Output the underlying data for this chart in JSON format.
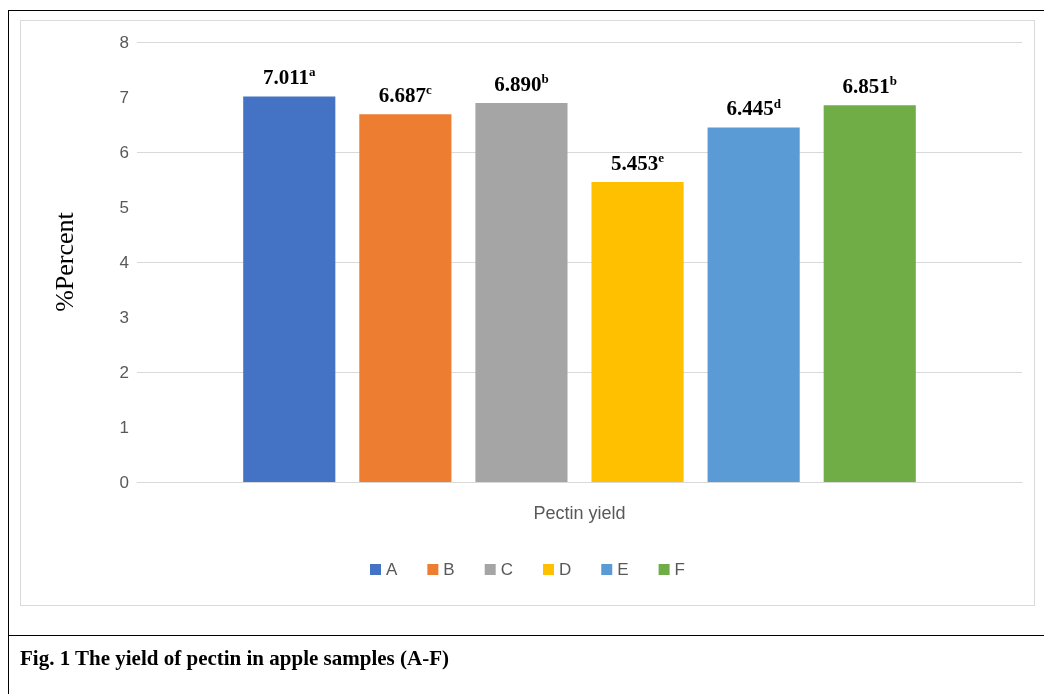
{
  "chart_data": {
    "type": "bar",
    "ylabel": "%Percent",
    "categories": [
      "Pectin yield"
    ],
    "series": [
      {
        "name": "A",
        "color": "#4472c4",
        "values": [
          7.011
        ],
        "value_labels": [
          "7.011$^{a}$"
        ]
      },
      {
        "name": "B",
        "color": "#ed7d31",
        "values": [
          6.687
        ],
        "value_labels": [
          "6.687$^{c}$"
        ]
      },
      {
        "name": "C",
        "color": "#a5a5a5",
        "values": [
          6.89
        ],
        "value_labels": [
          "6.890$^{b}$"
        ]
      },
      {
        "name": "D",
        "color": "#ffc000",
        "values": [
          5.453
        ],
        "value_labels": [
          "5.453$^{e}$"
        ]
      },
      {
        "name": "E",
        "color": "#5b9bd5",
        "values": [
          6.445
        ],
        "value_labels": [
          "6.445$^{d}$"
        ]
      },
      {
        "name": "F",
        "color": "#70ad47",
        "values": [
          6.851
        ],
        "value_labels": [
          "6.851$^{b}$"
        ]
      }
    ],
    "ylim": [
      0,
      8
    ],
    "yticks": [
      0,
      1,
      2,
      3,
      4,
      5,
      6,
      7,
      8
    ],
    "grid": "y",
    "legend": "bottom",
    "annotations": [
      "Fig. 1 The yield of pectin in apple samples (A-F)"
    ]
  }
}
